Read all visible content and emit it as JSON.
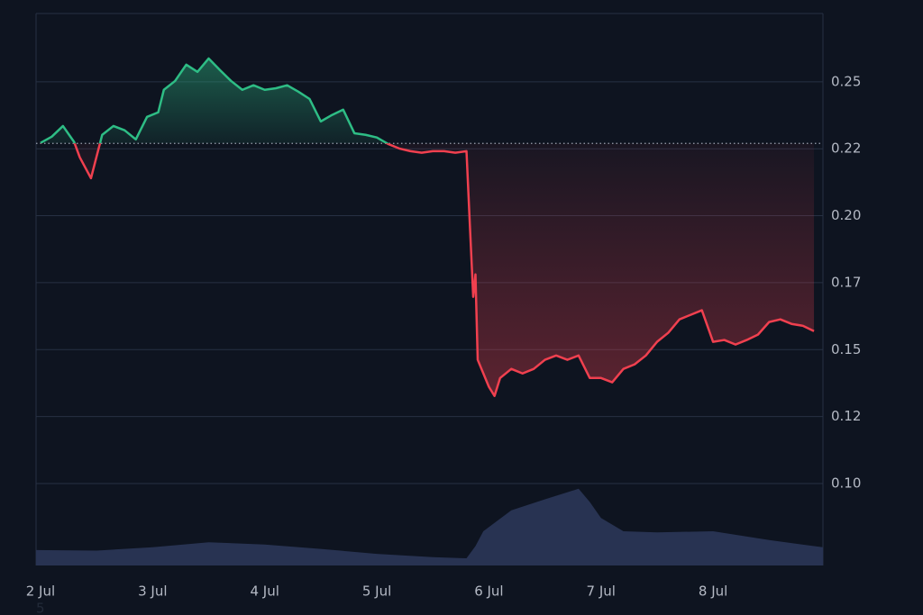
{
  "chart_data": {
    "type": "line",
    "x": [
      2.0,
      2.1,
      2.2,
      2.3,
      2.35,
      2.45,
      2.55,
      2.65,
      2.75,
      2.85,
      2.95,
      3.05,
      3.1,
      3.2,
      3.3,
      3.4,
      3.5,
      3.6,
      3.7,
      3.8,
      3.9,
      4.0,
      4.1,
      4.2,
      4.3,
      4.4,
      4.5,
      4.6,
      4.7,
      4.8,
      4.9,
      5.0,
      5.1,
      5.2,
      5.3,
      5.4,
      5.5,
      5.6,
      5.7,
      5.8,
      5.83,
      5.86,
      5.88,
      5.9,
      6.0,
      6.05,
      6.1,
      6.2,
      6.3,
      6.4,
      6.5,
      6.6,
      6.7,
      6.8,
      6.9,
      7.0,
      7.1,
      7.2,
      7.3,
      7.4,
      7.5,
      7.6,
      7.7,
      7.8,
      7.9,
      8.0,
      8.1,
      8.2,
      8.3,
      8.4,
      8.5,
      8.6,
      8.7,
      8.8,
      8.9
    ],
    "series": [
      {
        "name": "price",
        "color_up": "#2ebd85",
        "color_down": "#f0404f",
        "values": [
          0.2272,
          0.2295,
          0.2335,
          0.2275,
          0.2218,
          0.214,
          0.2302,
          0.2335,
          0.2319,
          0.2285,
          0.2369,
          0.2386,
          0.247,
          0.2503,
          0.2564,
          0.2537,
          0.2587,
          0.2544,
          0.2503,
          0.247,
          0.2487,
          0.247,
          0.2476,
          0.2487,
          0.2463,
          0.2436,
          0.2352,
          0.2376,
          0.2396,
          0.2308,
          0.2302,
          0.2292,
          0.2268,
          0.2251,
          0.2241,
          0.2235,
          0.2241,
          0.2241,
          0.2235,
          0.2241,
          0.1966,
          0.1697,
          0.1781,
          0.1462,
          0.1361,
          0.1327,
          0.1394,
          0.1428,
          0.1411,
          0.1428,
          0.1462,
          0.1478,
          0.1462,
          0.1478,
          0.1394,
          0.1394,
          0.1378,
          0.1428,
          0.1445,
          0.1478,
          0.1529,
          0.1563,
          0.1613,
          0.163,
          0.1647,
          0.1529,
          0.1536,
          0.1519,
          0.1536,
          0.1556,
          0.1603,
          0.1613,
          0.1596,
          0.1589,
          0.1569
        ]
      }
    ],
    "baseline": 0.227,
    "volume": {
      "color": "#283352",
      "x": [
        1.96,
        2.5,
        3.0,
        3.5,
        4.0,
        4.5,
        5.0,
        5.5,
        5.8,
        5.88,
        5.95,
        6.2,
        6.5,
        6.8,
        6.9,
        7.0,
        7.2,
        7.5,
        8.0,
        8.5,
        8.98
      ],
      "values": [
        2.8,
        2.7,
        3.3,
        4.2,
        3.8,
        3.0,
        2.1,
        1.5,
        1.3,
        3.5,
        6.2,
        10.0,
        12.0,
        13.9,
        11.5,
        8.6,
        6.2,
        6.0,
        6.2,
        4.6,
        3.3
      ]
    },
    "y2lim": [
      0,
      100
    ],
    "xlim": [
      1.96,
      8.98
    ],
    "xticks": [
      {
        "value": 2,
        "label": "2 Jul"
      },
      {
        "value": 3,
        "label": "3 Jul"
      },
      {
        "value": 4,
        "label": "4 Jul"
      },
      {
        "value": 5,
        "label": "5 Jul"
      },
      {
        "value": 6,
        "label": "6 Jul"
      },
      {
        "value": 7,
        "label": "7 Jul"
      },
      {
        "value": 8,
        "label": "8 Jul"
      }
    ],
    "ylim": [
      0.0694,
      0.2755
    ],
    "yticks": [
      {
        "value": 0.1,
        "label": "0.10"
      },
      {
        "value": 0.125,
        "label": "0.12"
      },
      {
        "value": 0.15,
        "label": "0.15"
      },
      {
        "value": 0.175,
        "label": "0.17"
      },
      {
        "value": 0.2,
        "label": "0.20"
      },
      {
        "value": 0.225,
        "label": "0.22"
      },
      {
        "value": 0.25,
        "label": "0.25"
      }
    ],
    "grid": true,
    "footnote": "5"
  }
}
